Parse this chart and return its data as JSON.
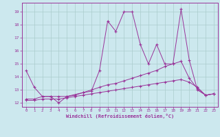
{
  "xlabel": "Windchill (Refroidissement éolien,°C)",
  "bg_color": "#cce8ee",
  "line_color": "#993399",
  "grid_color": "#aacccc",
  "xlim": [
    -0.5,
    23.5
  ],
  "ylim": [
    11.7,
    19.7
  ],
  "yticks": [
    12,
    13,
    14,
    15,
    16,
    17,
    18,
    19
  ],
  "xticks": [
    0,
    1,
    2,
    3,
    4,
    5,
    6,
    7,
    8,
    9,
    10,
    11,
    12,
    13,
    14,
    15,
    16,
    17,
    18,
    19,
    20,
    21,
    22,
    23
  ],
  "series1_x": [
    0,
    1,
    2,
    3,
    4,
    5,
    7,
    8,
    9,
    10,
    11,
    12,
    13,
    14,
    15,
    16,
    17,
    18,
    19,
    20,
    21,
    22,
    23
  ],
  "series1_y": [
    14.5,
    13.2,
    12.5,
    12.5,
    12.0,
    12.5,
    12.8,
    12.9,
    14.5,
    18.3,
    17.5,
    19.0,
    19.0,
    16.5,
    15.0,
    16.5,
    15.0,
    15.0,
    19.2,
    15.3,
    13.0,
    12.6,
    12.7
  ],
  "series2_x": [
    0,
    1,
    2,
    3,
    4,
    5,
    6,
    7,
    8,
    9,
    10,
    11,
    12,
    13,
    14,
    15,
    16,
    17,
    18,
    19,
    20,
    21,
    22,
    23
  ],
  "series2_y": [
    12.3,
    12.3,
    12.5,
    12.5,
    12.5,
    12.5,
    12.6,
    12.8,
    13.0,
    13.2,
    13.4,
    13.5,
    13.7,
    13.9,
    14.1,
    14.3,
    14.5,
    14.8,
    15.0,
    15.2,
    13.9,
    13.1,
    12.6,
    12.7
  ],
  "series3_x": [
    0,
    1,
    2,
    3,
    4,
    5,
    6,
    7,
    8,
    9,
    10,
    11,
    12,
    13,
    14,
    15,
    16,
    17,
    18,
    19,
    20,
    21,
    22,
    23
  ],
  "series3_y": [
    12.2,
    12.2,
    12.3,
    12.3,
    12.3,
    12.4,
    12.5,
    12.6,
    12.7,
    12.8,
    12.9,
    13.0,
    13.1,
    13.2,
    13.3,
    13.4,
    13.5,
    13.6,
    13.7,
    13.8,
    13.6,
    13.2,
    12.6,
    12.7
  ]
}
